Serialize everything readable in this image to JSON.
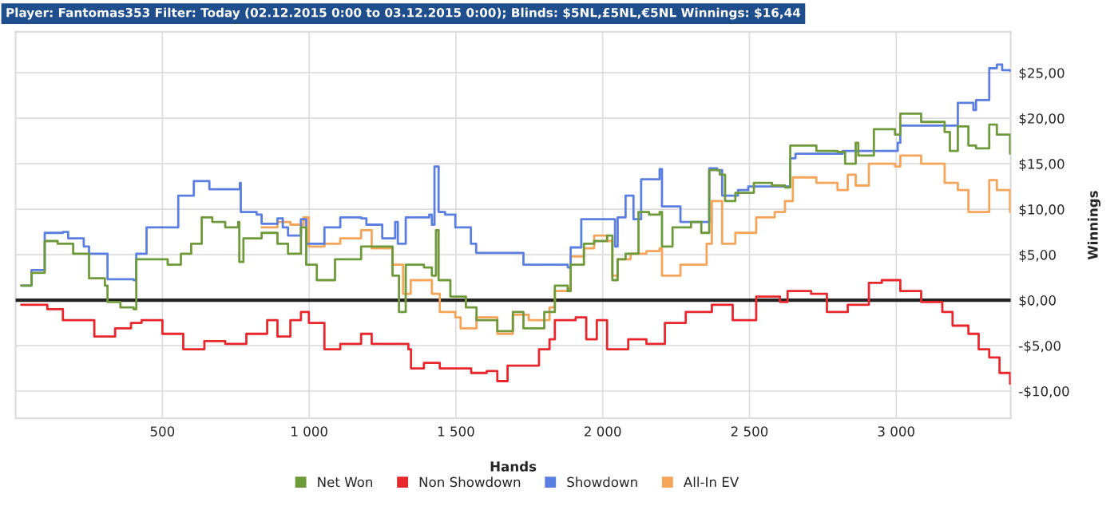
{
  "chart_data": {
    "type": "step",
    "title": "Player: Fantomas353 Filter: Today (02.12.2015 0:00 to 03.12.2015 0:00); Blinds: $5NL,£5NL,€5NL Winnings: $16,44",
    "xlabel": "Hands",
    "ylabel": "Winnings",
    "xlim": [
      0,
      3390
    ],
    "ylim": [
      -13,
      29.5
    ],
    "xticks": [
      500,
      {
        "value": 1000,
        "label": "1 000"
      },
      {
        "value": 1500,
        "label": "1 500"
      },
      {
        "value": 2000,
        "label": "2 000"
      },
      {
        "value": 2500,
        "label": "2 500"
      },
      {
        "value": 3000,
        "label": "3 000"
      }
    ],
    "yticks": [
      {
        "value": -10,
        "label": "-$10,00"
      },
      {
        "value": -5,
        "label": "-$5,00"
      },
      {
        "value": 0,
        "label": "$0,00"
      },
      {
        "value": 5,
        "label": "$5,00"
      },
      {
        "value": 10,
        "label": "$10,00"
      },
      {
        "value": 15,
        "label": "$15,00"
      },
      {
        "value": 20,
        "label": "$20,00"
      },
      {
        "value": 25,
        "label": "$25,00"
      }
    ],
    "grid": true,
    "legend": "bottom",
    "ref_lines": [
      {
        "axis": "y",
        "value": 0,
        "color": "#222222"
      }
    ],
    "series": [
      {
        "name": "Net Won",
        "color": "#6e9a3c",
        "x": [
          19,
          54,
          99,
          143,
          196,
          250,
          304,
          313,
          357,
          402,
          411,
          464,
          518,
          563,
          598,
          634,
          670,
          714,
          758,
          762,
          776,
          838,
          892,
          928,
          972,
          990,
          1026,
          1088,
          1177,
          1284,
          1306,
          1329,
          1391,
          1418,
          1432,
          1441,
          1481,
          1534,
          1570,
          1641,
          1694,
          1730,
          1801,
          1837,
          1881,
          1891,
          1936,
          1971,
          2015,
          2033,
          2051,
          2078,
          2122,
          2158,
          2194,
          2202,
          2238,
          2301,
          2336,
          2363,
          2399,
          2417,
          2452,
          2515,
          2577,
          2621,
          2639,
          2728,
          2800,
          2826,
          2862,
          2871,
          2924,
          2996,
          3014,
          3085,
          3165,
          3183,
          3210,
          3246,
          3272,
          3317,
          3343,
          3388
        ],
        "values": [
          1.6,
          3.0,
          6.5,
          6.2,
          5.1,
          2.4,
          1.6,
          -0.2,
          -0.8,
          -1.0,
          4.5,
          4.5,
          3.9,
          5.1,
          6.2,
          9.1,
          8.6,
          8.0,
          8.6,
          4.2,
          6.8,
          7.4,
          6.2,
          5.1,
          8.0,
          3.9,
          2.2,
          4.5,
          5.9,
          2.7,
          -1.3,
          3.9,
          3.6,
          2.7,
          7.7,
          2.2,
          0.4,
          -0.8,
          -2.2,
          -3.4,
          -1.3,
          -3.1,
          -1.3,
          1.6,
          1.0,
          3.9,
          6.2,
          6.5,
          7.1,
          2.2,
          4.5,
          5.1,
          9.7,
          9.4,
          9.7,
          5.9,
          8.0,
          8.6,
          7.4,
          14.3,
          13.8,
          10.9,
          11.8,
          12.9,
          12.6,
          12.4,
          17.0,
          16.4,
          16.3,
          15.0,
          17.3,
          15.9,
          18.8,
          18.2,
          20.5,
          19.6,
          18.5,
          16.4,
          19.1,
          17.0,
          16.7,
          19.3,
          18.2,
          16.1
        ]
      },
      {
        "name": "Non Showdown",
        "color": "#e8262b",
        "x": [
          19,
          108,
          161,
          268,
          339,
          393,
          429,
          500,
          571,
          643,
          714,
          786,
          857,
          892,
          936,
          972,
          999,
          1052,
          1106,
          1177,
          1213,
          1338,
          1347,
          1391,
          1445,
          1552,
          1605,
          1641,
          1676,
          1730,
          1783,
          1819,
          1837,
          1908,
          1944,
          1980,
          2007,
          2015,
          2087,
          2149,
          2212,
          2283,
          2372,
          2443,
          2523,
          2604,
          2630,
          2710,
          2764,
          2835,
          2880,
          2907,
          2951,
          3014,
          3085,
          3157,
          3192,
          3246,
          3281,
          3317,
          3352,
          3388
        ],
        "values": [
          -0.5,
          -1.0,
          -2.2,
          -4.0,
          -3.1,
          -2.5,
          -2.2,
          -3.7,
          -5.4,
          -4.5,
          -4.8,
          -3.7,
          -2.2,
          -4.0,
          -2.2,
          -1.3,
          -2.5,
          -5.4,
          -4.8,
          -3.7,
          -4.8,
          -5.4,
          -7.5,
          -6.9,
          -7.5,
          -8.0,
          -7.8,
          -8.9,
          -7.2,
          -7.2,
          -5.4,
          -4.3,
          -2.2,
          -1.9,
          -4.3,
          -2.2,
          -2.2,
          -5.4,
          -4.3,
          -4.8,
          -2.5,
          -1.3,
          -0.5,
          -2.2,
          0.4,
          -0.2,
          1.0,
          0.7,
          -1.3,
          -0.5,
          -0.5,
          1.9,
          2.2,
          1.0,
          -0.2,
          -1.3,
          -2.8,
          -3.7,
          -5.4,
          -6.3,
          -8.0,
          -9.2
        ]
      },
      {
        "name": "Showdown",
        "color": "#5b7fe0",
        "x": [
          19,
          54,
          99,
          161,
          179,
          232,
          250,
          313,
          313,
          402,
          411,
          446,
          554,
          598,
          607,
          651,
          660,
          758,
          764,
          767,
          821,
          838,
          892,
          910,
          928,
          972,
          990,
          1035,
          1052,
          1106,
          1177,
          1195,
          1249,
          1284,
          1293,
          1302,
          1329,
          1409,
          1418,
          1427,
          1436,
          1441,
          1463,
          1498,
          1551,
          1569,
          1721,
          1730,
          1837,
          1881,
          1891,
          1927,
          1927,
          2033,
          2042,
          2051,
          2078,
          2101,
          2105,
          2131,
          2131,
          2194,
          2202,
          2265,
          2336,
          2363,
          2390,
          2407,
          2461,
          2496,
          2568,
          2639,
          2657,
          2800,
          2818,
          2978,
          3005,
          3014,
          3210,
          3210,
          3263,
          3272,
          3308,
          3317,
          3343,
          3361,
          3388
        ],
        "values": [
          1.6,
          3.3,
          7.4,
          7.5,
          6.8,
          5.9,
          5.1,
          5.1,
          2.3,
          2.2,
          5.1,
          8.0,
          11.5,
          11.5,
          13.1,
          13.1,
          12.2,
          12.2,
          12.9,
          9.7,
          9.4,
          8.4,
          9.0,
          8.0,
          7.1,
          8.9,
          6.2,
          6.2,
          8.0,
          9.1,
          9.0,
          8.3,
          6.8,
          6.8,
          8.6,
          6.2,
          9.1,
          9.4,
          8.3,
          14.7,
          14.7,
          9.7,
          9.4,
          8.0,
          6.2,
          5.2,
          5.2,
          3.9,
          3.9,
          3.6,
          5.8,
          5.8,
          8.9,
          8.9,
          5.9,
          9.1,
          11.5,
          11.5,
          8.9,
          8.9,
          13.3,
          14.4,
          10.3,
          8.6,
          8.6,
          14.5,
          14.3,
          11.5,
          12.1,
          12.5,
          12.5,
          15.6,
          16.1,
          16.1,
          16.4,
          16.4,
          17.3,
          19.2,
          19.2,
          21.7,
          20.9,
          22.0,
          22.0,
          25.5,
          25.9,
          25.3,
          25.2
        ]
      },
      {
        "name": "All-In EV",
        "color": "#f5a55a",
        "x": [
          838,
          892,
          936,
          981,
          999,
          1052,
          1106,
          1177,
          1213,
          1284,
          1320,
          1346,
          1418,
          1445,
          1498,
          1516,
          1570,
          1641,
          1694,
          1748,
          1819,
          1837,
          1881,
          1891,
          1936,
          1971,
          2015,
          2033,
          2051,
          2095,
          2149,
          2194,
          2202,
          2265,
          2318,
          2354,
          2372,
          2407,
          2452,
          2523,
          2586,
          2621,
          2648,
          2728,
          2800,
          2835,
          2862,
          2907,
          2996,
          3014,
          3085,
          3165,
          3210,
          3246,
          3290,
          3317,
          3343,
          3388
        ],
        "values": [
          8.0,
          8.6,
          8.3,
          9.1,
          5.9,
          6.2,
          6.8,
          7.7,
          5.7,
          3.9,
          0.7,
          2.2,
          0.7,
          -1.3,
          -1.9,
          -3.1,
          -1.9,
          -3.7,
          -1.6,
          -2.2,
          -0.8,
          1.0,
          1.3,
          4.8,
          5.7,
          7.1,
          6.5,
          2.7,
          4.5,
          5.1,
          5.4,
          5.7,
          2.7,
          3.9,
          3.9,
          6.2,
          10.9,
          6.2,
          7.4,
          9.1,
          9.7,
          10.9,
          13.5,
          12.9,
          12.1,
          13.8,
          12.6,
          15.0,
          14.7,
          15.9,
          15.0,
          12.9,
          12.1,
          9.7,
          9.7,
          13.2,
          12.1,
          9.7
        ]
      }
    ]
  }
}
